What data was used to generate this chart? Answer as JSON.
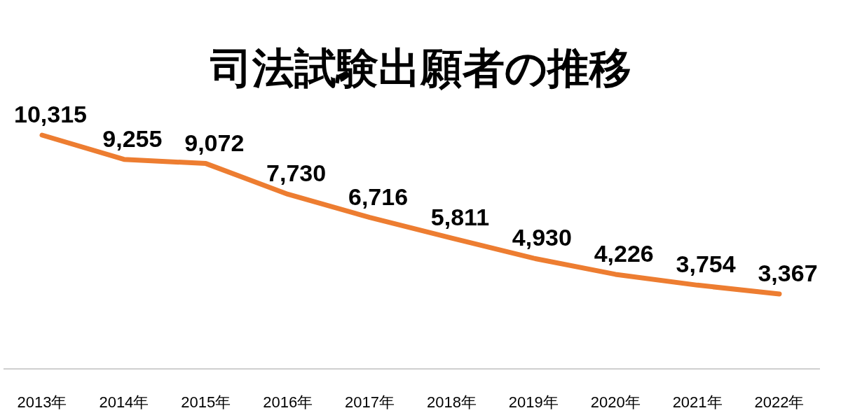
{
  "chart_data": {
    "type": "line",
    "title": "司法試験出願者の推移",
    "categories": [
      "2013年",
      "2014年",
      "2015年",
      "2016年",
      "2017年",
      "2018年",
      "2019年",
      "2020年",
      "2021年",
      "2022年"
    ],
    "series": [
      {
        "color": "#ed7d31",
        "values": [
          10315,
          9255,
          9072,
          7730,
          6716,
          5811,
          4930,
          4226,
          3754,
          3367
        ],
        "value_labels": [
          "10,315",
          "9,255",
          "9,072",
          "7,730",
          "6,716",
          "5,811",
          "4,930",
          "4,226",
          "3,754",
          "3,367"
        ]
      }
    ]
  }
}
